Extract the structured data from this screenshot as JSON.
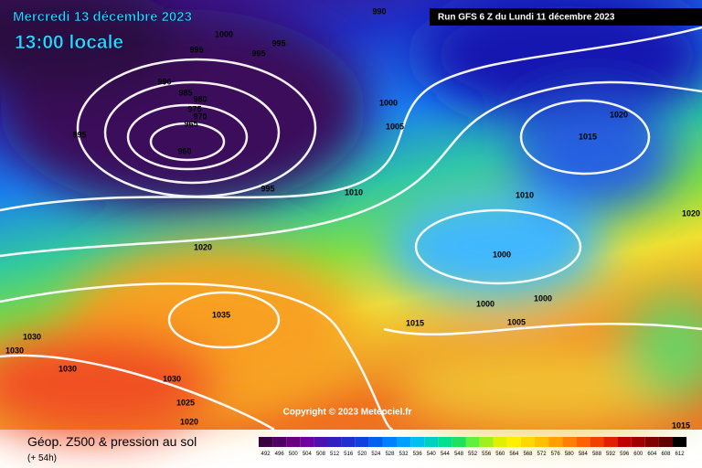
{
  "header": {
    "date": "Mercredi 13 décembre 2023",
    "time": "13:00 locale",
    "run": "Run GFS 6 Z du Lundi 11 décembre 2023"
  },
  "map": {
    "copyright": "Copyright © 2023 Meteociel.fr",
    "isobar_labels": [
      "990",
      "1000",
      "995",
      "995",
      "995",
      "990",
      "985",
      "980",
      "975",
      "970",
      "965",
      "995",
      "960",
      "1000",
      "1005",
      "1020",
      "1015",
      "995",
      "1010",
      "1010",
      "1020",
      "1020",
      "1000",
      "1035",
      "1000",
      "1000",
      "1015",
      "1005",
      "1030",
      "1030",
      "1030",
      "1030",
      "1025",
      "1020",
      "1015"
    ]
  },
  "legend": {
    "title": "Géop. Z500 & pression au sol",
    "subtitle": "(+ 54h)",
    "scale": [
      492,
      496,
      500,
      504,
      508,
      512,
      516,
      520,
      524,
      528,
      532,
      536,
      540,
      544,
      548,
      552,
      556,
      560,
      564,
      568,
      572,
      576,
      580,
      584,
      588,
      592,
      596,
      600,
      604,
      608,
      612
    ]
  }
}
